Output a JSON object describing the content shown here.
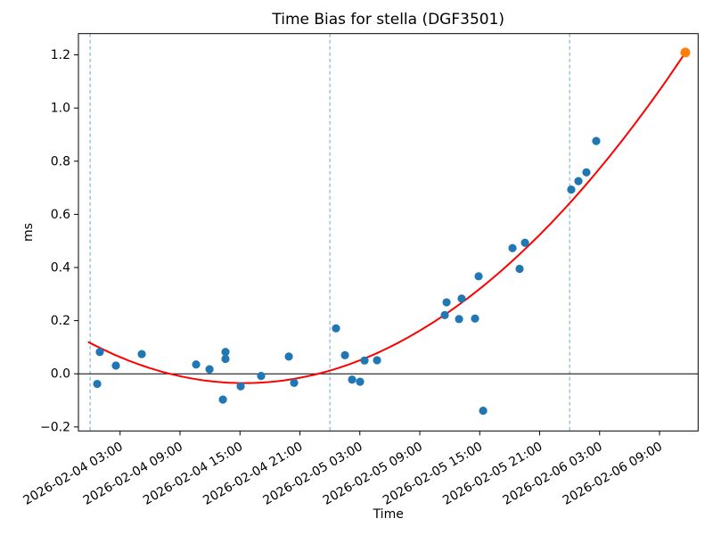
{
  "figure": {
    "title": "Time Bias for stella (DGF3501)",
    "xlabel": "Time",
    "ylabel": "ms"
  },
  "colors": {
    "background": "#ffffff",
    "axis": "#000000",
    "measurement_marker": "#1f77b4",
    "prediction_marker": "#ff7f0e",
    "fit_line": "#ff0000",
    "midnight_line": "#6aa7d4",
    "zero_line": "#000000"
  },
  "chart_data": {
    "type": "scatter",
    "title": "Time Bias for stella (DGF3501)",
    "xlabel": "Time",
    "ylabel": "ms",
    "x_unit": "hours since 2026-02-04 00:00",
    "xlim": [
      -1.17,
      60.86
    ],
    "ylim": [
      -0.215,
      1.28
    ],
    "grid": false,
    "legend": "none",
    "x_ticks": [
      {
        "t": 3,
        "label": "2026-02-04 03:00"
      },
      {
        "t": 9,
        "label": "2026-02-04 09:00"
      },
      {
        "t": 15,
        "label": "2026-02-04 15:00"
      },
      {
        "t": 21,
        "label": "2026-02-04 21:00"
      },
      {
        "t": 27,
        "label": "2026-02-05 03:00"
      },
      {
        "t": 33,
        "label": "2026-02-05 09:00"
      },
      {
        "t": 39,
        "label": "2026-02-05 15:00"
      },
      {
        "t": 45,
        "label": "2026-02-05 21:00"
      },
      {
        "t": 51,
        "label": "2026-02-06 03:00"
      },
      {
        "t": 57,
        "label": "2026-02-06 09:00"
      }
    ],
    "y_ticks": [
      {
        "v": -0.2,
        "label": "−0.2"
      },
      {
        "v": 0.0,
        "label": "0.0"
      },
      {
        "v": 0.2,
        "label": "0.2"
      },
      {
        "v": 0.4,
        "label": "0.4"
      },
      {
        "v": 0.6,
        "label": "0.6"
      },
      {
        "v": 0.8,
        "label": "0.8"
      },
      {
        "v": 1.0,
        "label": "1.0"
      },
      {
        "v": 1.2,
        "label": "1.2"
      }
    ],
    "vlines": {
      "style": "dashed",
      "color": "#6aa7d4",
      "times": [
        {
          "t": 0,
          "time": "2026-02-04 00:00"
        },
        {
          "t": 24,
          "time": "2026-02-05 00:00"
        },
        {
          "t": 48,
          "time": "2026-02-06 00:00"
        }
      ]
    },
    "hline": {
      "ms": 0.0,
      "color": "#000000"
    },
    "fit_curve": {
      "shape": "quadratic",
      "color": "#ff0000",
      "a": 0.000637,
      "vertex_t": 15.4,
      "vertex_ms": -0.035,
      "t_start": -0.14,
      "t_end": 59.58
    },
    "series": [
      {
        "name": "bias measurements",
        "marker": "circle",
        "color": "#1f77b4",
        "radius": 4.6,
        "points": [
          {
            "t": 0.71,
            "time": "2026-02-04 00:43",
            "ms": -0.038
          },
          {
            "t": 0.97,
            "time": "2026-02-04 00:58",
            "ms": 0.082
          },
          {
            "t": 2.58,
            "time": "2026-02-04 02:35",
            "ms": 0.031
          },
          {
            "t": 5.17,
            "time": "2026-02-04 05:10",
            "ms": 0.074
          },
          {
            "t": 10.61,
            "time": "2026-02-04 10:37",
            "ms": 0.035
          },
          {
            "t": 11.95,
            "time": "2026-02-04 11:57",
            "ms": 0.017
          },
          {
            "t": 13.29,
            "time": "2026-02-04 13:17",
            "ms": -0.097
          },
          {
            "t": 13.55,
            "time": "2026-02-04 13:33",
            "ms": 0.082
          },
          {
            "t": 13.55,
            "time": "2026-02-04 13:33",
            "ms": 0.056
          },
          {
            "t": 15.07,
            "time": "2026-02-04 15:04",
            "ms": -0.047
          },
          {
            "t": 17.12,
            "time": "2026-02-04 17:07",
            "ms": -0.008
          },
          {
            "t": 19.89,
            "time": "2026-02-04 19:53",
            "ms": 0.065
          },
          {
            "t": 20.42,
            "time": "2026-02-04 20:25",
            "ms": -0.034
          },
          {
            "t": 24.61,
            "time": "2026-02-05 00:37",
            "ms": 0.171
          },
          {
            "t": 25.51,
            "time": "2026-02-05 01:31",
            "ms": 0.07
          },
          {
            "t": 26.22,
            "time": "2026-02-05 02:13",
            "ms": -0.022
          },
          {
            "t": 27.02,
            "time": "2026-02-05 03:01",
            "ms": -0.03
          },
          {
            "t": 27.47,
            "time": "2026-02-05 03:28",
            "ms": 0.05
          },
          {
            "t": 28.72,
            "time": "2026-02-05 04:43",
            "ms": 0.051
          },
          {
            "t": 35.5,
            "time": "2026-02-05 11:30",
            "ms": 0.221
          },
          {
            "t": 35.68,
            "time": "2026-02-05 11:41",
            "ms": 0.269
          },
          {
            "t": 36.93,
            "time": "2026-02-05 12:56",
            "ms": 0.206
          },
          {
            "t": 37.19,
            "time": "2026-02-05 13:11",
            "ms": 0.283
          },
          {
            "t": 38.53,
            "time": "2026-02-05 14:32",
            "ms": 0.208
          },
          {
            "t": 38.89,
            "time": "2026-02-05 14:53",
            "ms": 0.367
          },
          {
            "t": 39.34,
            "time": "2026-02-05 15:20",
            "ms": -0.139
          },
          {
            "t": 42.28,
            "time": "2026-02-05 18:17",
            "ms": 0.473
          },
          {
            "t": 42.99,
            "time": "2026-02-05 18:59",
            "ms": 0.395
          },
          {
            "t": 43.53,
            "time": "2026-02-05 19:32",
            "ms": 0.493
          },
          {
            "t": 48.16,
            "time": "2026-02-06 00:10",
            "ms": 0.693
          },
          {
            "t": 48.88,
            "time": "2026-02-06 00:53",
            "ms": 0.725
          },
          {
            "t": 49.68,
            "time": "2026-02-06 01:41",
            "ms": 0.758
          },
          {
            "t": 50.66,
            "time": "2026-02-06 02:40",
            "ms": 0.876
          }
        ]
      },
      {
        "name": "prediction",
        "marker": "circle",
        "color": "#ff7f0e",
        "radius": 5.5,
        "points": [
          {
            "t": 59.58,
            "time": "2026-02-06 11:35",
            "ms": 1.209
          }
        ]
      }
    ]
  }
}
